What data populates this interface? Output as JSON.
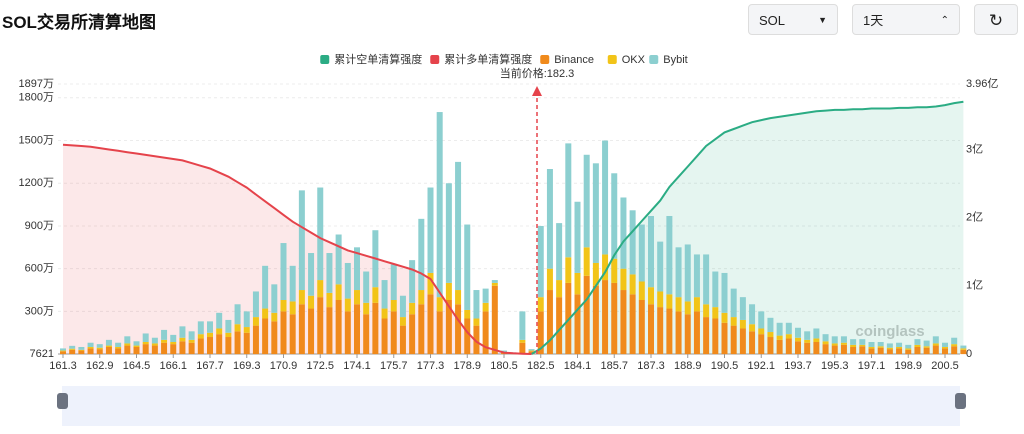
{
  "header": {
    "title": "SOL交易所清算地图"
  },
  "controls": {
    "symbol": "SOL",
    "range": "1天"
  },
  "chart_data": {
    "type": "bar",
    "stacked": true,
    "grid": true,
    "legend": "top",
    "annotation": "当前价格:182.3",
    "watermark": "coinglass",
    "categories": [
      "161.3",
      null,
      null,
      null,
      "162.9",
      null,
      null,
      null,
      "164.5",
      null,
      null,
      null,
      "166.1",
      null,
      null,
      null,
      "167.7",
      null,
      null,
      null,
      "169.3",
      null,
      null,
      null,
      "170.9",
      null,
      null,
      null,
      "172.5",
      null,
      null,
      null,
      "174.1",
      null,
      null,
      null,
      "175.7",
      null,
      null,
      null,
      "177.3",
      null,
      null,
      null,
      "178.9",
      null,
      null,
      null,
      "180.5",
      null,
      null,
      null,
      "182.5",
      null,
      null,
      null,
      "184.1",
      null,
      null,
      null,
      "185.7",
      null,
      null,
      null,
      "187.3",
      null,
      null,
      null,
      "188.9",
      null,
      null,
      null,
      "190.5",
      null,
      null,
      null,
      "192.1",
      null,
      null,
      null,
      "193.7",
      null,
      null,
      null,
      "195.3",
      null,
      null,
      null,
      "197.1",
      null,
      null,
      null,
      "198.9",
      null,
      null,
      null,
      "200.5",
      null,
      null
    ],
    "ylim": [
      0.7621,
      1897
    ],
    "yticks": [
      {
        "value": 0.7621,
        "label": "7621"
      },
      {
        "value": 300,
        "label": "300万"
      },
      {
        "value": 600,
        "label": "600万"
      },
      {
        "value": 900,
        "label": "900万"
      },
      {
        "value": 1200,
        "label": "1200万"
      },
      {
        "value": 1500,
        "label": "1500万"
      },
      {
        "value": 1800,
        "label": "1800万"
      },
      {
        "value": 1897,
        "label": "1897万"
      }
    ],
    "y2lim": [
      0,
      3.96
    ],
    "y2ticks": [
      0,
      {
        "value": 1,
        "label": "1亿"
      },
      {
        "value": 2,
        "label": "2亿"
      },
      {
        "value": 3,
        "label": "3亿"
      },
      {
        "value": 3.96,
        "label": "3.96亿"
      }
    ],
    "series": [
      {
        "name": "累计空单清算强度",
        "color": "#2bac84",
        "type": "line",
        "axis": "y2",
        "values": [
          null,
          null,
          null,
          null,
          null,
          null,
          null,
          null,
          null,
          null,
          null,
          null,
          null,
          null,
          null,
          null,
          null,
          null,
          null,
          null,
          null,
          null,
          null,
          null,
          null,
          null,
          null,
          null,
          null,
          null,
          null,
          null,
          null,
          null,
          null,
          null,
          null,
          null,
          null,
          null,
          null,
          null,
          null,
          null,
          null,
          null,
          null,
          null,
          null,
          null,
          null,
          0,
          0.08,
          0.2,
          0.35,
          0.5,
          0.65,
          0.8,
          1.0,
          1.2,
          1.45,
          1.65,
          1.8,
          1.95,
          2.1,
          2.25,
          2.45,
          2.6,
          2.75,
          2.9,
          3.05,
          3.15,
          3.25,
          3.3,
          3.35,
          3.4,
          3.43,
          3.46,
          3.48,
          3.5,
          3.52,
          3.54,
          3.56,
          3.57,
          3.58,
          3.58,
          3.59,
          3.59,
          3.6,
          3.6,
          3.6,
          3.61,
          3.61,
          3.62,
          3.62,
          3.63,
          3.65,
          3.68,
          3.7
        ]
      },
      {
        "name": "累计多单清算强度",
        "color": "#e5434b",
        "type": "line",
        "axis": "y2",
        "values": [
          3.07,
          3.06,
          3.05,
          3.04,
          3.02,
          3.0,
          2.98,
          2.96,
          2.94,
          2.92,
          2.9,
          2.88,
          2.86,
          2.84,
          2.8,
          2.76,
          2.72,
          2.66,
          2.6,
          2.52,
          2.44,
          2.34,
          2.24,
          2.14,
          2.04,
          1.94,
          1.86,
          1.78,
          1.7,
          1.64,
          1.58,
          1.52,
          1.48,
          1.44,
          1.4,
          1.36,
          1.32,
          1.28,
          1.24,
          1.18,
          1.1,
          0.9,
          0.7,
          0.5,
          0.32,
          0.18,
          0.1,
          0.06,
          0.02,
          0.01,
          0.005,
          0,
          null,
          null,
          null,
          null,
          null,
          null,
          null,
          null,
          null,
          null,
          null,
          null,
          null,
          null,
          null,
          null,
          null,
          null,
          null,
          null,
          null,
          null,
          null,
          null,
          null,
          null,
          null,
          null,
          null,
          null,
          null,
          null,
          null,
          null,
          null,
          null,
          null,
          null,
          null,
          null,
          null,
          null,
          null,
          null,
          null,
          null,
          null
        ]
      },
      {
        "name": "Binance",
        "color": "#f08a1c",
        "type": "bar",
        "values": [
          20,
          30,
          25,
          40,
          35,
          50,
          40,
          60,
          50,
          70,
          60,
          80,
          70,
          90,
          80,
          110,
          120,
          140,
          120,
          160,
          150,
          200,
          250,
          230,
          300,
          280,
          350,
          320,
          400,
          330,
          380,
          300,
          350,
          280,
          360,
          250,
          300,
          200,
          280,
          350,
          420,
          300,
          380,
          350,
          250,
          200,
          300,
          480,
          10,
          5,
          80,
          20,
          300,
          450,
          400,
          500,
          420,
          550,
          480,
          520,
          500,
          450,
          420,
          380,
          350,
          330,
          320,
          300,
          280,
          300,
          260,
          250,
          220,
          200,
          180,
          160,
          140,
          120,
          100,
          110,
          90,
          80,
          85,
          70,
          60,
          65,
          50,
          55,
          40,
          45,
          35,
          40,
          30,
          50,
          45,
          60,
          40,
          55,
          30
        ]
      },
      {
        "name": "OKX",
        "color": "#f2c418",
        "type": "bar",
        "values": [
          5,
          8,
          5,
          10,
          10,
          10,
          10,
          15,
          10,
          15,
          15,
          20,
          15,
          25,
          20,
          30,
          30,
          40,
          30,
          50,
          40,
          60,
          70,
          60,
          80,
          90,
          100,
          90,
          120,
          100,
          110,
          90,
          100,
          80,
          110,
          70,
          80,
          60,
          80,
          100,
          150,
          100,
          120,
          100,
          60,
          50,
          60,
          20,
          5,
          2,
          20,
          5,
          100,
          150,
          120,
          180,
          150,
          200,
          160,
          180,
          170,
          150,
          140,
          130,
          120,
          110,
          100,
          100,
          90,
          100,
          90,
          80,
          70,
          60,
          60,
          50,
          40,
          35,
          30,
          30,
          25,
          20,
          25,
          20,
          15,
          15,
          15,
          10,
          10,
          10,
          10,
          10,
          10,
          15,
          10,
          15,
          10,
          15,
          10
        ]
      },
      {
        "name": "Bybit",
        "color": "#8ccfd0",
        "type": "bar",
        "values": [
          15,
          20,
          20,
          30,
          25,
          40,
          30,
          50,
          30,
          60,
          40,
          70,
          50,
          80,
          60,
          90,
          80,
          110,
          90,
          140,
          110,
          180,
          300,
          200,
          400,
          250,
          700,
          300,
          650,
          280,
          350,
          250,
          300,
          220,
          400,
          200,
          250,
          150,
          300,
          500,
          600,
          1300,
          700,
          900,
          600,
          200,
          100,
          20,
          10,
          5,
          200,
          10,
          500,
          700,
          400,
          800,
          500,
          650,
          700,
          800,
          600,
          500,
          450,
          400,
          500,
          350,
          550,
          350,
          400,
          300,
          350,
          250,
          280,
          200,
          160,
          140,
          120,
          100,
          90,
          80,
          70,
          60,
          70,
          50,
          50,
          45,
          40,
          40,
          35,
          30,
          30,
          30,
          25,
          40,
          40,
          50,
          30,
          45,
          20
        ]
      }
    ]
  }
}
